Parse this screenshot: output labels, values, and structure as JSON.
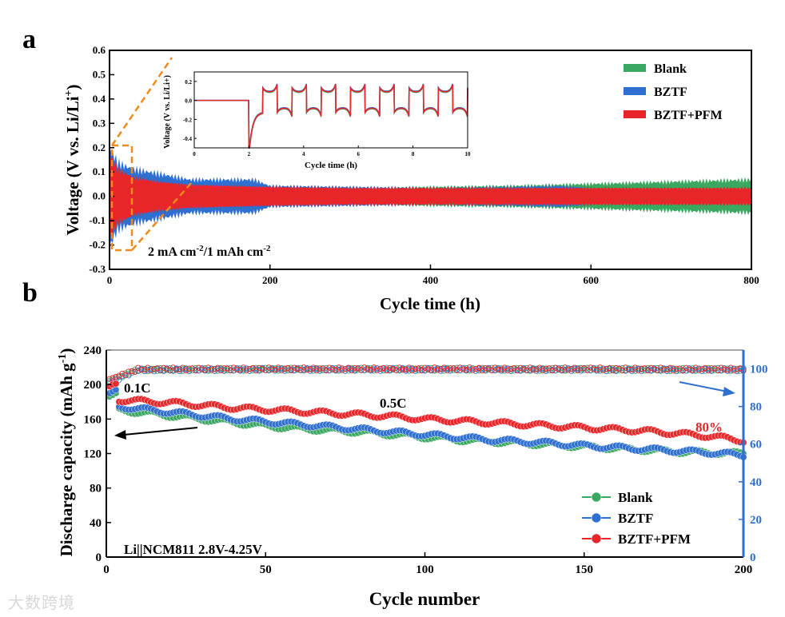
{
  "chart_data": [
    {
      "panel": "a",
      "type": "line",
      "xlabel": "Cycle time (h)",
      "ylabel": "Voltage (V vs. Li/Li+)",
      "xlim": [
        0,
        800
      ],
      "ylim": [
        -0.3,
        0.6
      ],
      "xticks": [
        0,
        200,
        400,
        600,
        800
      ],
      "yticks": [
        -0.3,
        -0.2,
        -0.1,
        0.0,
        0.1,
        0.2,
        0.3,
        0.4,
        0.5,
        0.6
      ],
      "annotation": "2 mA cm-2/1 mAh cm-2",
      "legend_position": "top-right",
      "series": [
        {
          "name": "Blank",
          "color": "#3aa860",
          "x": [
            0,
            20,
            50,
            100,
            200,
            300,
            400,
            500,
            600,
            700,
            800
          ],
          "amplitude": [
            0.12,
            0.09,
            0.06,
            0.05,
            0.045,
            0.04,
            0.045,
            0.05,
            0.06,
            0.07,
            0.08
          ]
        },
        {
          "name": "BZTF",
          "color": "#2f6fd0",
          "x": [
            0,
            10,
            30,
            60,
            100,
            150,
            180,
            200,
            300,
            400,
            500,
            560,
            600
          ],
          "amplitude": [
            0.24,
            0.16,
            0.13,
            0.11,
            0.08,
            0.08,
            0.08,
            0.05,
            0.045,
            0.04,
            0.045,
            0.05,
            0.04
          ]
        },
        {
          "name": "BZTF+PFM",
          "color": "#e8262a",
          "x": [
            0,
            10,
            30,
            60,
            100,
            200,
            300,
            400,
            500,
            600,
            700,
            800
          ],
          "amplitude": [
            0.2,
            0.13,
            0.09,
            0.07,
            0.055,
            0.045,
            0.04,
            0.04,
            0.04,
            0.04,
            0.04,
            0.04
          ]
        }
      ],
      "inset": {
        "type": "line",
        "xlabel": "Cycle time (h)",
        "ylabel": "Voltage (V vs. Li/Li+)",
        "xlim": [
          0,
          10
        ],
        "ylim": [
          -0.5,
          0.3
        ],
        "xticks": [
          0,
          2,
          4,
          6,
          8,
          10
        ],
        "yticks": [
          -0.4,
          -0.2,
          0.0,
          0.2
        ],
        "rest_until": 2,
        "period": 1.07,
        "plateau": 0.07,
        "first_dip": -0.45
      }
    },
    {
      "panel": "b",
      "type": "scatter",
      "xlabel": "Cycle number",
      "ylabel": "Discharge capacity (mAh g-1)",
      "xlim": [
        0,
        200
      ],
      "ylim": [
        0,
        240
      ],
      "y2lim": [
        0,
        110
      ],
      "xticks": [
        0,
        50,
        100,
        150,
        200
      ],
      "yticks": [
        0,
        40,
        80,
        120,
        160,
        200,
        240
      ],
      "y2ticks": [
        0,
        20,
        40,
        60,
        80,
        100
      ],
      "annotations": [
        "0.1C",
        "0.5C",
        "80%",
        "Li||NCM811 2.8V-4.25V"
      ],
      "legend_position": "bottom-right",
      "x": [
        0,
        10,
        20,
        30,
        40,
        50,
        60,
        70,
        80,
        90,
        100,
        110,
        120,
        130,
        140,
        150,
        160,
        170,
        180,
        190,
        200
      ],
      "series": [
        {
          "name": "Blank",
          "color": "#3aa860",
          "initial_0_1C": [
            186,
            188,
            190
          ],
          "capacity": [
            172,
            168,
            164,
            160,
            156,
            152,
            149,
            147,
            145,
            142,
            139,
            136,
            134,
            132,
            130,
            128,
            126,
            124,
            122,
            121,
            120
          ],
          "coulombic_efficiency": [
            93,
            99.5,
            99.6,
            99.7,
            99.7,
            99.8,
            99.8,
            99.7,
            99.8,
            99.8,
            99.7,
            99.8,
            99.8,
            99.7,
            99.7,
            99.8,
            99.6,
            99.7,
            99.6,
            99.7,
            99.6
          ]
        },
        {
          "name": "BZTF",
          "color": "#2f6fd0",
          "initial_0_1C": [
            190,
            192,
            194
          ],
          "capacity": [
            176,
            172,
            168,
            164,
            160,
            157,
            154,
            151,
            148,
            145,
            142,
            139,
            136,
            134,
            132,
            129,
            127,
            125,
            123,
            121,
            118
          ],
          "coulombic_efficiency": [
            92,
            99.4,
            99.5,
            99.6,
            99.6,
            99.7,
            99.7,
            99.6,
            99.7,
            99.7,
            99.6,
            99.7,
            99.7,
            99.6,
            99.6,
            99.7,
            99.5,
            99.6,
            99.5,
            99.6,
            99.5
          ]
        },
        {
          "name": "BZTF+PFM",
          "color": "#e8262a",
          "initial_0_1C": [
            198,
            200,
            201
          ],
          "capacity": [
            183,
            181,
            179,
            176,
            173,
            171,
            169,
            167,
            165,
            163,
            160,
            158,
            156,
            154,
            152,
            150,
            148,
            146,
            143,
            140,
            135
          ],
          "coulombic_efficiency": [
            94,
            99.8,
            99.9,
            99.9,
            99.9,
            99.9,
            100,
            99.9,
            100,
            99.9,
            99.9,
            100,
            99.9,
            99.9,
            99.9,
            100,
            99.9,
            99.9,
            99.8,
            99.9,
            99.8
          ]
        }
      ]
    }
  ],
  "labels": {
    "panel_a": "a",
    "panel_b": "b",
    "a_ylabel": "Voltage (V vs. Li/Li",
    "a_ylabel_sup": "+",
    "a_ylabel_end": ")",
    "a_xlabel": "Cycle time (h)",
    "a_annotation_main": "2 mA cm",
    "a_annotation_sup1": "-2",
    "a_annotation_mid": "/1 mAh cm",
    "a_annotation_sup2": "-2",
    "inset_xlabel": "Cycle time (h)",
    "inset_ylabel": "Voltage (V vs. Li/Li+)",
    "b_ylabel": "Discharge capacity (mAh g",
    "b_ylabel_sup": "-1",
    "b_ylabel_end": ")",
    "b_xlabel": "Cycle number",
    "rate_01C": "0.1C",
    "rate_05C": "0.5C",
    "retention": "80%",
    "cell_info": "Li||NCM811 2.8V-4.25V",
    "legend": [
      "Blank",
      "BZTF",
      "BZTF+PFM"
    ]
  },
  "watermark": "大数跨境"
}
